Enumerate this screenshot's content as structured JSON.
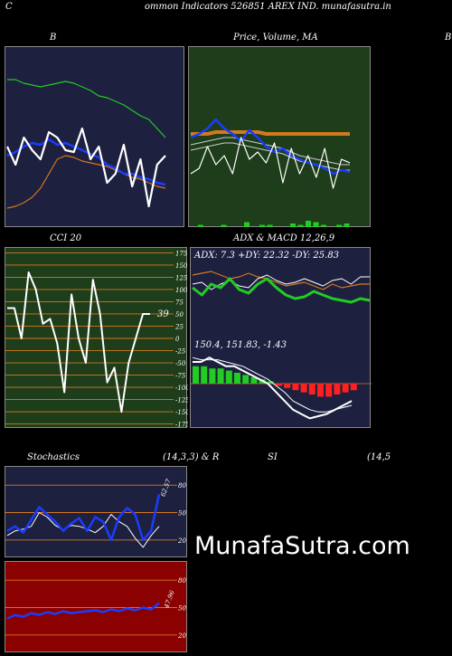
{
  "header": {
    "c_letter": "C",
    "title": "ommon  Indicators 526851 AREX  IND. munafasutra.in"
  },
  "panel_titles": {
    "bollinger": "B",
    "price_ma": "Price,  Volume,  MA",
    "right_edge": "B",
    "cci": "CCI 20",
    "adx_macd": "ADX  & MACD 12,26,9",
    "stochastics_left": "Stochastics",
    "stochastics_right": "(14,3,3) & R",
    "rsi_left": "SI",
    "rsi_right": "(14,5"
  },
  "brand": "MunafaSutra.com",
  "colors": {
    "navy": "#1e2040",
    "green_bg": "#1e3d1a",
    "dark_red": "#8b0000",
    "orange": "#d4781e",
    "band_green": "#22cc22",
    "blue": "#1a3cff"
  },
  "chart_data": [
    {
      "type": "line",
      "name": "bollinger",
      "series": [
        {
          "values": [
            82,
            82,
            80,
            79,
            78,
            79,
            80,
            81,
            80,
            78,
            76,
            73,
            72,
            70,
            68,
            65,
            62,
            60,
            55,
            50
          ]
        },
        {
          "values": [
            40,
            42,
            45,
            47,
            46,
            49,
            46,
            47,
            45,
            43,
            41,
            39,
            35,
            33,
            30,
            30,
            28,
            27,
            25,
            24
          ]
        },
        {
          "values": [
            11,
            12,
            14,
            17,
            22,
            30,
            38,
            40,
            39,
            37,
            36,
            35,
            34,
            32,
            30,
            28,
            27,
            25,
            23,
            22
          ]
        },
        {
          "values": [
            45,
            35,
            50,
            43,
            38,
            53,
            50,
            43,
            42,
            55,
            38,
            45,
            25,
            30,
            46,
            23,
            38,
            12,
            35,
            40
          ]
        }
      ]
    },
    {
      "type": "line",
      "name": "price_volume_ma",
      "series": [
        {
          "values": [
            50,
            52,
            55,
            60,
            55,
            52,
            48,
            54,
            50,
            45,
            42,
            44,
            40,
            38,
            36,
            35,
            33,
            30,
            32,
            31
          ]
        },
        {
          "values": [
            46,
            47,
            48,
            49,
            50,
            50,
            49,
            48,
            47,
            46,
            45,
            44,
            42,
            40,
            39,
            38,
            37,
            36,
            35,
            35
          ]
        },
        {
          "values": [
            52,
            52,
            52,
            53,
            53,
            53,
            53,
            53,
            53,
            52,
            52,
            52,
            52,
            52,
            52,
            52,
            52,
            52,
            52,
            52
          ]
        },
        {
          "values": [
            30,
            33,
            45,
            35,
            40,
            30,
            50,
            38,
            42,
            36,
            47,
            25,
            44,
            30,
            40,
            28,
            44,
            22,
            38,
            36
          ]
        }
      ],
      "volume": [
        1,
        0,
        0,
        1,
        0,
        0,
        3,
        0,
        1,
        1,
        0,
        0,
        2,
        1,
        4,
        3,
        1,
        0,
        1,
        2
      ]
    },
    {
      "type": "line",
      "name": "cci_20",
      "yticks": [
        175,
        150,
        125,
        100,
        75,
        50,
        25,
        0,
        -25,
        -50,
        -75,
        -100,
        -125,
        -150,
        -175
      ],
      "ylim": [
        -185,
        185
      ],
      "values": [
        62,
        62,
        0,
        135,
        100,
        30,
        40,
        -10,
        -110,
        90,
        0,
        -50,
        120,
        50,
        -90,
        -60,
        -150,
        -50,
        0,
        50,
        50
      ],
      "last_label": "39"
    },
    {
      "type": "line",
      "name": "adx_macd",
      "adx_text": "ADX: 7.3  +DY: 22.32  -DY: 25.83",
      "macd_text": "150.4,  151.83,  -1.43",
      "adx": [
        28,
        24,
        30,
        28,
        33,
        27,
        25,
        30,
        33,
        28,
        24,
        22,
        23,
        26,
        24,
        22,
        21,
        20,
        22,
        21
      ],
      "plus_di": [
        35,
        36,
        37,
        35,
        33,
        34,
        36,
        34,
        33,
        31,
        29,
        30,
        31,
        29,
        27,
        30,
        28,
        29,
        30,
        30
      ],
      "minus_di": [
        30,
        31,
        27,
        30,
        32,
        29,
        28,
        33,
        35,
        32,
        30,
        31,
        33,
        31,
        29,
        32,
        33,
        30,
        34,
        34
      ],
      "macd": [
        10,
        10,
        12,
        10,
        8,
        8,
        6,
        4,
        2,
        0,
        -4,
        -8,
        -12,
        -14,
        -16,
        -15,
        -14,
        -12,
        -10,
        -8
      ],
      "signal": [
        12,
        11,
        11,
        11,
        10,
        9,
        8,
        6,
        4,
        2,
        -1,
        -4,
        -8,
        -10,
        -12,
        -13,
        -13,
        -12,
        -11,
        -10
      ],
      "histogram": [
        8,
        8,
        7,
        7,
        6,
        5,
        4,
        3,
        2,
        1,
        -1,
        -2,
        -3,
        -4,
        -5,
        -6,
        -6,
        -5,
        -4,
        -3
      ]
    },
    {
      "type": "line",
      "name": "stochastics",
      "yticks": [
        80,
        50,
        20
      ],
      "ylim": [
        0,
        100
      ],
      "k": [
        30,
        35,
        28,
        42,
        56,
        48,
        40,
        30,
        38,
        44,
        30,
        45,
        40,
        20,
        45,
        55,
        48,
        20,
        30,
        70
      ],
      "d": [
        25,
        30,
        32,
        35,
        50,
        45,
        36,
        31,
        36,
        35,
        32,
        28,
        35,
        48,
        40,
        35,
        22,
        12,
        25,
        35
      ],
      "last_label": "62.57"
    },
    {
      "type": "line",
      "name": "rsi",
      "yticks": [
        80,
        50,
        20
      ],
      "ylim": [
        0,
        100
      ],
      "values": [
        38,
        42,
        40,
        44,
        42,
        45,
        43,
        46,
        44,
        45,
        46,
        47,
        45,
        48,
        46,
        49,
        47,
        50,
        48,
        55
      ],
      "last_label": "47.96"
    }
  ]
}
